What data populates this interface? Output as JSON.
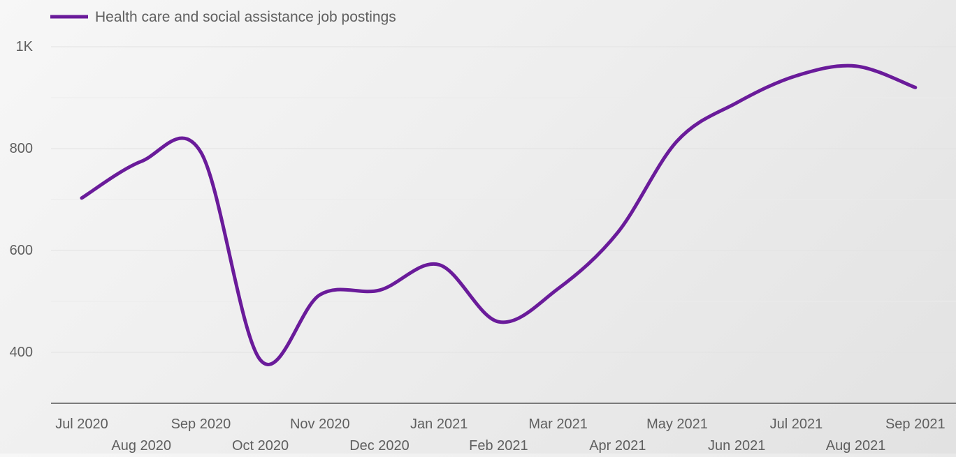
{
  "chart_data": {
    "type": "line",
    "title": "",
    "xlabel": "",
    "ylabel": "",
    "categories": [
      "Jul 2020",
      "Aug 2020",
      "Sep 2020",
      "Oct 2020",
      "Nov 2020",
      "Dec 2020",
      "Jan 2021",
      "Feb 2021",
      "Mar 2021",
      "Apr 2021",
      "May 2021",
      "Jun 2021",
      "Jul 2021",
      "Aug 2021",
      "Sep 2021"
    ],
    "series": [
      {
        "name": "Health care and social assistance job postings",
        "color": "#6a1b9a",
        "values": [
          703,
          775,
          793,
          385,
          513,
          522,
          572,
          460,
          525,
          635,
          815,
          890,
          943,
          962,
          920
        ]
      }
    ],
    "ylim": [
      300,
      1000
    ],
    "y_ticks": [
      400,
      600,
      800,
      1000
    ],
    "y_tick_labels": [
      "400",
      "600",
      "800",
      "1K"
    ],
    "grid": true,
    "legend_position": "top-left"
  }
}
